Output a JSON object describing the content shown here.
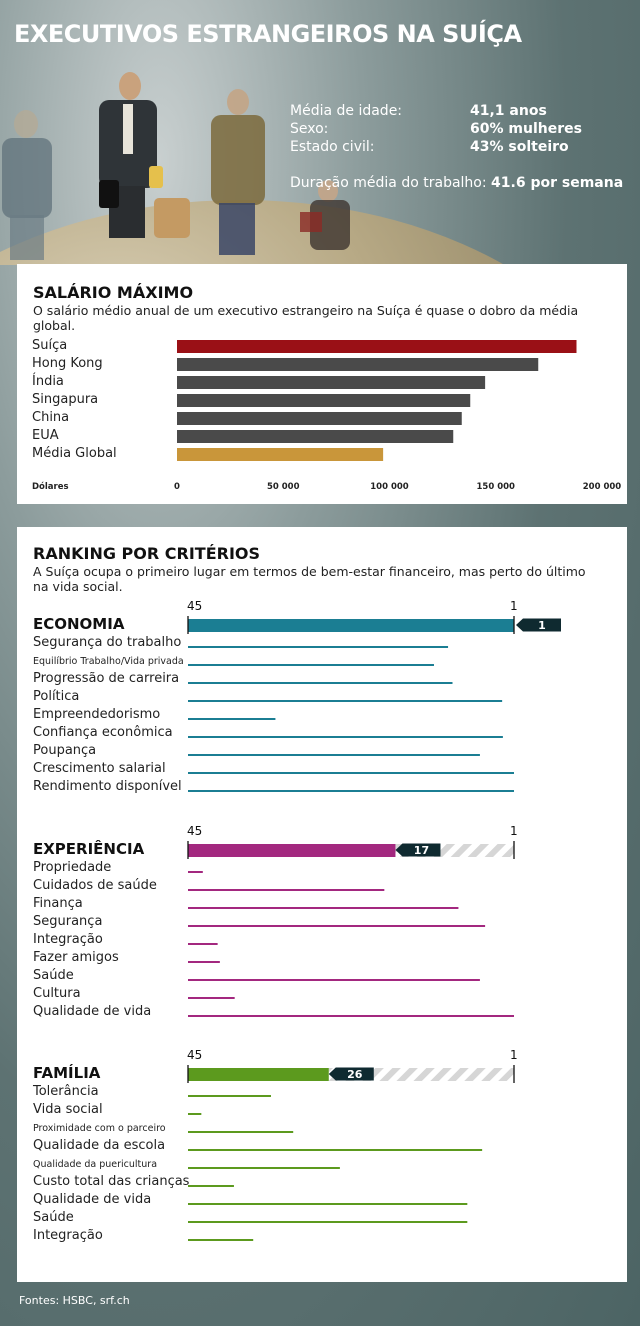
{
  "header": {
    "title": "EXECUTIVOS ESTRANGEIROS NA SUÍÇA",
    "stats": [
      {
        "label": "Média de idade:",
        "value": "41,1 anos"
      },
      {
        "label": "Sexo:",
        "value": "60% mulheres"
      },
      {
        "label": "Estado civil:",
        "value": "43% solteiro"
      }
    ],
    "duration_label": "Duração média do trabalho:",
    "duration_value": "41.6 por semana"
  },
  "salary": {
    "title": "SALÁRIO MÁXIMO",
    "subtitle": "O salário médio anual de um executivo estrangeiro na Suíça é quase o dobro da média global."
  },
  "ranking": {
    "title": "RANKING POR CRITÉRIOS",
    "subtitle": "A Suíça ocupa o primeiro lugar em termos de bem-estar financeiro, mas perto do último na vida social."
  },
  "footer": {
    "sources": "Fontes: HSBC, srf.ch"
  },
  "colors": {
    "switzerland": "#9a1016",
    "countries": "#4a4a4a",
    "global": "#c9963a",
    "economia": "#1b7e93",
    "experiencia": "#a3287f",
    "familia": "#5c9a1e",
    "badge": "#0f2a30"
  },
  "chart_data": [
    {
      "type": "bar",
      "orientation": "horizontal",
      "title": "SALÁRIO MÁXIMO",
      "xlabel": "Dólares",
      "categories": [
        "Suíça",
        "Hong Kong",
        "Índia",
        "Singapura",
        "China",
        "EUA",
        "Média Global"
      ],
      "values": [
        188000,
        170000,
        145000,
        138000,
        134000,
        130000,
        97000
      ],
      "xlim": [
        0,
        200000
      ],
      "xticks": [
        "0",
        "50 000",
        "100 000",
        "150 000",
        "200 000"
      ],
      "tick_values": [
        0,
        50000,
        100000,
        150000,
        200000
      ]
    },
    {
      "type": "bar",
      "orientation": "horizontal",
      "title": "ECONOMIA",
      "axis_start_label": "45",
      "axis_end_label": "1",
      "rank": 1,
      "rank_label": "1",
      "categories": [
        "Segurança do trabalho",
        "Equilíbrio Trabalho/Vida privada",
        "Progressão de carreira",
        "Política",
        "Empreendedorismo",
        "Confiança econômica",
        "Poupança",
        "Crescimento salarial",
        "Rendimento disponível"
      ],
      "values": [
        9.9,
        11.8,
        9.3,
        2.6,
        33.2,
        2.5,
        5.6,
        1,
        1
      ]
    },
    {
      "type": "bar",
      "orientation": "horizontal",
      "title": "EXPERIÊNCIA",
      "axis_start_label": "45",
      "axis_end_label": "1",
      "rank": 17,
      "rank_label": "17",
      "categories": [
        "Propriedade",
        "Cuidados de saúde",
        "Finança",
        "Segurança",
        "Integração",
        "Fazer amigos",
        "Saúde",
        "Cultura",
        "Qualidade de vida"
      ],
      "values": [
        43,
        18.5,
        8.5,
        4.9,
        41,
        40.7,
        5.6,
        38.7,
        1
      ]
    },
    {
      "type": "bar",
      "orientation": "horizontal",
      "title": "FAMÍLIA",
      "axis_start_label": "45",
      "axis_end_label": "1",
      "rank": 26,
      "rank_label": "26",
      "categories": [
        "Tolerância",
        "Vida social",
        "Proximidade com o parceiro",
        "Qualidade da escola",
        "Qualidade da puericultura",
        "Custo total das crianças",
        "Qualidade de vida",
        "Saúde",
        "Integração"
      ],
      "values": [
        33.8,
        43.2,
        30.8,
        5.3,
        24.5,
        38.8,
        7.3,
        7.3,
        36.2
      ]
    }
  ]
}
